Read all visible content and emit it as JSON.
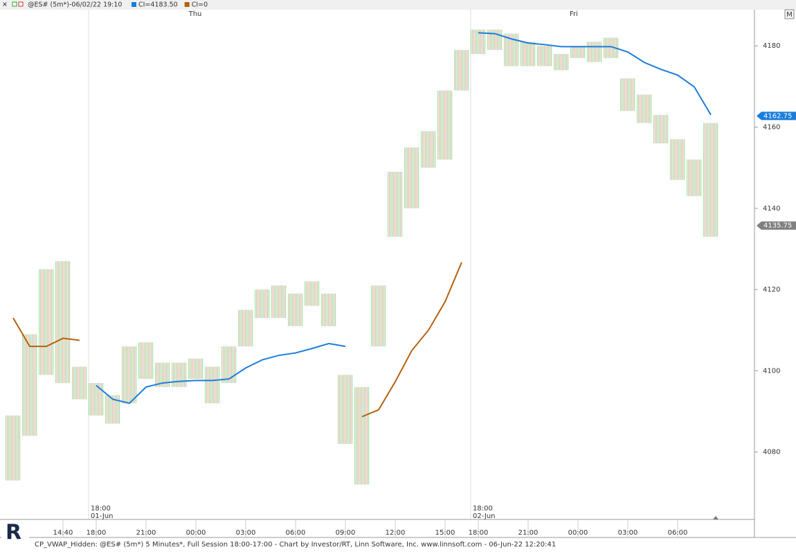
{
  "chart_data": {
    "type": "hilo",
    "title": "@ES# (5m*)-06/02/22 19:10",
    "footer": "CP_VWAP_Hidden: @ES# (5m*) 5 Minutes*, Full Session 18:00-17:00 - Chart by Investor/RT, Linn Software, Inc. www.linnsoft.com - 06-Jun-22 12:20:41",
    "days": [
      "Thu",
      "Fri"
    ],
    "sessions": [
      {
        "time": "18:00",
        "date": "01-Jun"
      },
      {
        "time": "18:00",
        "date": "02-Jun"
      }
    ],
    "button": "M",
    "categories": [
      null,
      null,
      null,
      "14:40",
      null,
      "18:00",
      null,
      null,
      "21:00",
      null,
      null,
      "00:00",
      null,
      null,
      "03:00",
      null,
      null,
      "06:00",
      null,
      null,
      "09:00",
      null,
      null,
      "12:00",
      null,
      null,
      "15:00",
      null,
      "18:00",
      null,
      null,
      "21:00",
      null,
      null,
      "00:00",
      null,
      null,
      "03:00",
      null,
      null,
      "06:00",
      null,
      null
    ],
    "price": {
      "high": [
        4089,
        4109,
        4125,
        4127,
        4101,
        4097,
        4094,
        4106,
        4107,
        4102,
        4102,
        4103,
        4101,
        4106,
        4115,
        4120,
        4121,
        4119,
        4122,
        4119,
        4099,
        4096,
        4121,
        4149,
        4155,
        4159,
        4169,
        4179,
        4184,
        4184,
        4183,
        4181,
        4180,
        4178,
        4180,
        4181,
        4182,
        4172,
        4168,
        4163,
        4157,
        4152,
        4161
      ],
      "low": [
        4073,
        4084,
        4099,
        4097,
        4093,
        4089,
        4087,
        4092,
        4098,
        4096,
        4096,
        4098,
        4092,
        4097,
        4106,
        4113,
        4113,
        4111,
        4116,
        4111,
        4082,
        4072,
        4106,
        4133,
        4140,
        4150,
        4152,
        4169,
        4178,
        4179,
        4175,
        4175,
        4175,
        4174,
        4177,
        4176,
        4177,
        4164,
        4161,
        4156,
        4147,
        4143,
        4133
      ],
      "up_color": "#9fe3a0",
      "down_color": "#f0a0a0"
    },
    "series": [
      {
        "name": "CI=4183.50",
        "color": "#1a7ddb",
        "values": [
          null,
          null,
          null,
          null,
          null,
          4096.4,
          4093,
          4092,
          4096,
          4097,
          4097.4,
          4097.6,
          4097.6,
          4098,
          4100.7,
          4102.7,
          4103.8,
          4104.4,
          4105.5,
          4106.7,
          4106,
          null,
          null,
          null,
          null,
          null,
          null,
          null,
          4183.2,
          4183,
          4181.7,
          4180.7,
          4180.3,
          4179.8,
          4179.8,
          4179.8,
          4179.8,
          4178.5,
          4175.9,
          4174.2,
          4172.8,
          4169.9,
          4163
        ]
      },
      {
        "name": "CI=0",
        "color": "#b5600e",
        "values": [
          4113,
          4106,
          4106,
          4108,
          4107.5,
          null,
          null,
          null,
          null,
          null,
          null,
          null,
          null,
          null,
          null,
          null,
          null,
          null,
          null,
          null,
          null,
          4088.7,
          4090.4,
          4097.3,
          4105,
          4110,
          4117,
          4126.7,
          null,
          null,
          null,
          null,
          null,
          null,
          null,
          null,
          null,
          null,
          null,
          null,
          null,
          null,
          null
        ]
      }
    ],
    "last_labels": [
      {
        "value": 4162.75,
        "color": "#1a7ddb"
      },
      {
        "value": 4135.75,
        "color": "#808080"
      }
    ],
    "ylim": [
      4063.4,
      4188.9
    ],
    "yticks": [
      4080,
      4100,
      4120,
      4140,
      4160,
      4180
    ]
  }
}
